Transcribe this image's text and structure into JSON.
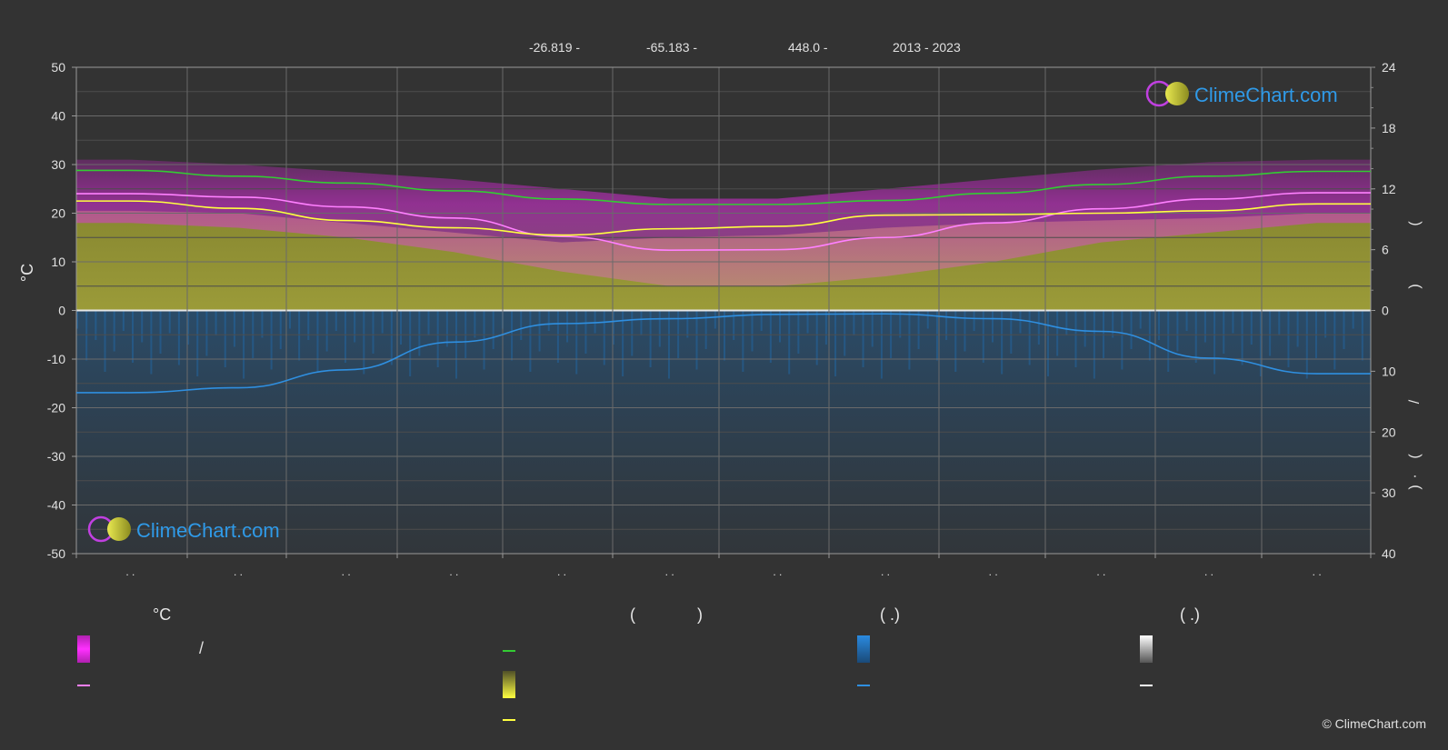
{
  "header": {
    "lat": "-26.819 -",
    "lon": "-65.183 -",
    "elev": "448.0 -",
    "years": "2013 - 2023"
  },
  "logo_text": "ClimeChart.com",
  "copyright": "© ClimeChart.com",
  "axes": {
    "left_unit": "°C",
    "left_ticks": [
      "50",
      "40",
      "30",
      "20",
      "10",
      "0",
      "-10",
      "-20",
      "-30",
      "-40",
      "-50"
    ],
    "right_top_ticks": [
      "24",
      "18",
      "12",
      "6",
      "0"
    ],
    "right_bottom_ticks": [
      "10",
      "20",
      "30",
      "40"
    ],
    "right_top_glyphs": [
      "(",
      ")"
    ],
    "right_bottom_glyphs": [
      "/",
      "(",
      "·",
      ")"
    ],
    "x_tick_labels": [
      ". .",
      ". .",
      ". .",
      ". .",
      ". .",
      ". .",
      ". .",
      ". .",
      ". .",
      ". .",
      ". .",
      ". ."
    ]
  },
  "legend": {
    "col1_header": "°C",
    "col1_sep": "/",
    "col2_header_open": "(",
    "col2_header_close": ")",
    "col3_header": "(   .)",
    "col4_header": "(   .)"
  },
  "colors": {
    "background": "#333333",
    "daylight": "#33cc33",
    "temp_band": "#e040e0",
    "temp_mean": "#ff80ff",
    "sunshine_band": "#c8c83c",
    "sunshine_mean": "#ffff40",
    "precip_band": "#1e78c8",
    "precip_mean": "#2f8fe0",
    "snow_band": "#ffffff",
    "logo_text": "#2f9ae8"
  },
  "chart_data": {
    "type": "area",
    "x_points": 12,
    "series": [
      {
        "axis": "temp",
        "values": [
          28.8,
          27.6,
          26.2,
          24.6,
          22.9,
          21.8,
          21.8,
          22.6,
          24.1,
          25.9,
          27.6,
          28.6
        ]
      },
      {
        "axis": "temp",
        "values": [
          24.0,
          23.3,
          21.3,
          19.0,
          15.2,
          12.4,
          12.5,
          15.0,
          18.0,
          20.9,
          22.9,
          24.2
        ]
      },
      {
        "axis": "temp",
        "values": [
          22.5,
          21.0,
          18.5,
          17.0,
          15.5,
          16.8,
          17.3,
          19.6,
          19.7,
          20.0,
          20.5,
          21.9
        ]
      },
      {
        "axis": "temp",
        "values": [
          -16.9,
          -15.9,
          -12.2,
          -6.5,
          -2.7,
          -1.7,
          -0.8,
          -0.7,
          -1.7,
          -4.3,
          -9.8,
          -13.0
        ]
      }
    ],
    "temp_band_upper": [
      31,
      30,
      28.5,
      27,
      25,
      23,
      23,
      25,
      27,
      29,
      30.5,
      31
    ],
    "temp_band_lower": [
      18,
      17,
      15,
      12,
      8,
      5,
      5,
      7,
      10,
      14,
      16,
      18
    ],
    "sunshine_band_top": [
      20.5,
      20,
      18,
      16,
      14,
      15,
      15.5,
      17,
      18,
      18.5,
      19,
      20
    ],
    "ylim_left": [
      -50,
      50
    ],
    "ylim_right_top": [
      0,
      24
    ],
    "ylim_right_bottom": [
      0,
      40
    ]
  }
}
